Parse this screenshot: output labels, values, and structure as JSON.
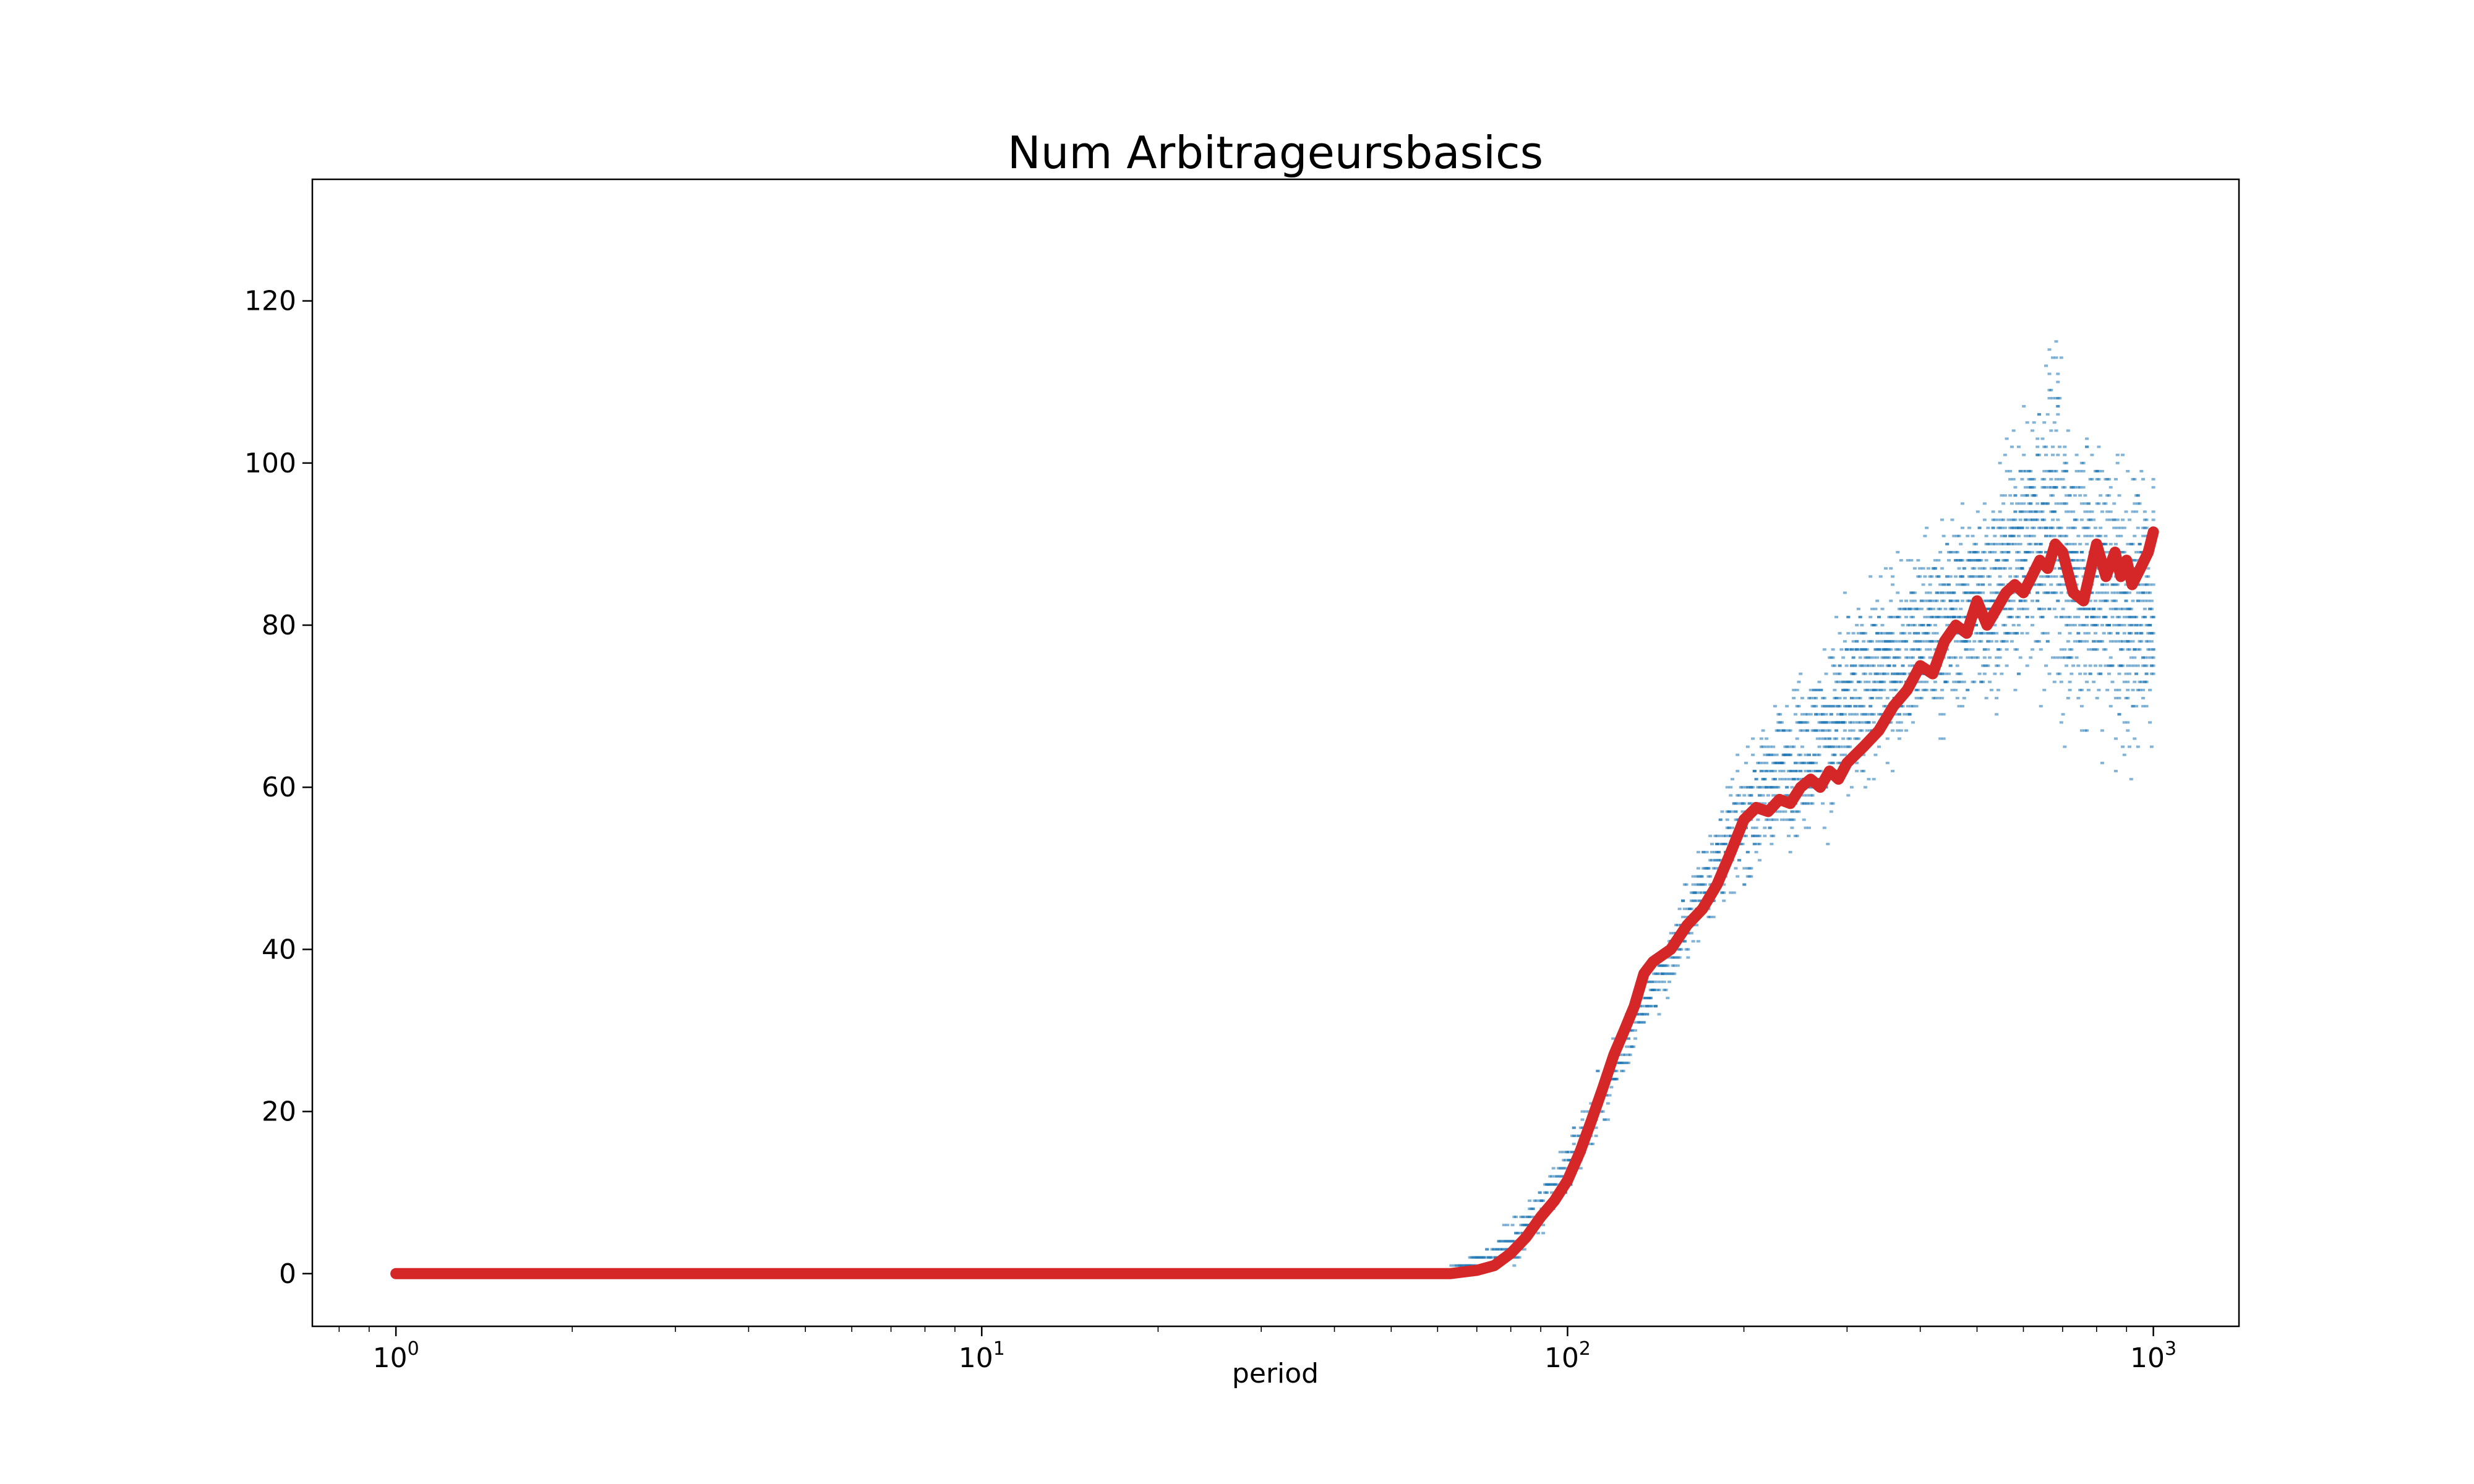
{
  "chart_data": {
    "type": "scatter",
    "title": "Num Arbitrageursbasics",
    "xlabel": "period",
    "ylabel": "",
    "xscale": "log",
    "xlim": [
      0.72,
      1400
    ],
    "ylim": [
      -6.5,
      135
    ],
    "x_ticks": [
      {
        "base": "10",
        "exp": "0",
        "value": 1
      },
      {
        "base": "10",
        "exp": "1",
        "value": 10
      },
      {
        "base": "10",
        "exp": "2",
        "value": 100
      },
      {
        "base": "10",
        "exp": "3",
        "value": 1000
      }
    ],
    "y_ticks": [
      0,
      20,
      40,
      60,
      80,
      100,
      120
    ],
    "grid": false,
    "colors": {
      "scatter": "#1f77b4",
      "mean_line": "#d62728"
    },
    "series": [
      {
        "kind": "scatter",
        "description_note": "per-run observations, spread envelope (low, high) by period",
        "x": [
          1,
          60,
          65,
          70,
          75,
          80,
          90,
          100,
          110,
          120,
          130,
          140,
          150,
          170,
          200,
          230,
          250,
          280,
          300,
          350,
          400,
          450,
          500,
          550,
          600,
          650,
          680,
          700,
          750,
          800,
          850,
          900,
          950,
          1000
        ],
        "low": [
          0,
          0,
          0,
          0,
          0,
          0,
          3,
          8,
          14,
          20,
          26,
          30,
          34,
          40,
          46,
          50,
          50,
          52,
          54,
          60,
          62,
          64,
          66,
          66,
          68,
          66,
          64,
          60,
          64,
          62,
          62,
          58,
          60,
          62
        ],
        "high": [
          0,
          0,
          1,
          3,
          5,
          8,
          12,
          18,
          24,
          30,
          36,
          40,
          44,
          56,
          66,
          74,
          78,
          82,
          86,
          90,
          94,
          98,
          100,
          104,
          112,
          116,
          128,
          114,
          108,
          108,
          106,
          104,
          106,
          104
        ]
      },
      {
        "kind": "line",
        "description_note": "mean across runs",
        "x": [
          1,
          2,
          5,
          10,
          20,
          50,
          63,
          70,
          75,
          80,
          85,
          90,
          95,
          100,
          105,
          110,
          115,
          120,
          125,
          130,
          135,
          140,
          150,
          160,
          170,
          180,
          190,
          200,
          210,
          220,
          230,
          240,
          250,
          260,
          270,
          280,
          290,
          300,
          320,
          340,
          360,
          380,
          400,
          420,
          440,
          460,
          480,
          500,
          520,
          540,
          560,
          580,
          600,
          620,
          640,
          660,
          680,
          700,
          730,
          760,
          800,
          830,
          860,
          880,
          900,
          920,
          950,
          980,
          1000
        ],
        "y": [
          0,
          0,
          0,
          0,
          0,
          0,
          0,
          0.4,
          1,
          2.5,
          4.5,
          7,
          9,
          11.5,
          15,
          19,
          23,
          27,
          30,
          33,
          37,
          38.5,
          40,
          43,
          45,
          48,
          52,
          56,
          57.5,
          57,
          58.5,
          58,
          60,
          61,
          60,
          62,
          61,
          63,
          65,
          67,
          70,
          72,
          75,
          74,
          78,
          80,
          79,
          83,
          80,
          82,
          84,
          85,
          84,
          86,
          88,
          87,
          90,
          89,
          84,
          83,
          90,
          86,
          89,
          86,
          88,
          85,
          87,
          89,
          91.5
        ]
      }
    ]
  }
}
